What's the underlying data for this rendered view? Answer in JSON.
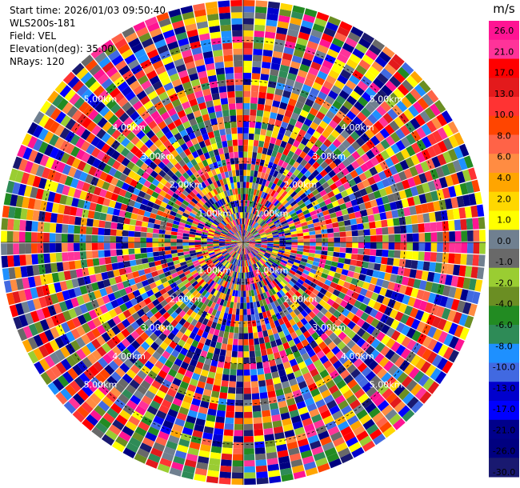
{
  "chart_data": {
    "type": "heatmap",
    "projection": "polar-ppi",
    "info": {
      "start_time": "Start time: 2026/01/03 09:50:40",
      "instrument": "WLS200s-181",
      "field": "Field: VEL",
      "elevation": "Elevation(deg): 35.00",
      "nrays": "NRays: 120"
    },
    "n_rays": 120,
    "max_range_km": 6,
    "range_ring_km": [
      1,
      2,
      3,
      4,
      5
    ],
    "range_ring_labels": [
      "1.00km",
      "2.00km",
      "3.00km",
      "4.00km",
      "5.00km"
    ],
    "colorbar": {
      "unit": "m/s",
      "ticks": [
        "26.0",
        "21.0",
        "17.0",
        "13.0",
        "10.0",
        "8.0",
        "6.0",
        "4.0",
        "2.0",
        "1.0",
        "0.0",
        "-1.0",
        "-2.0",
        "-4.0",
        "-6.0",
        "-8.0",
        "-10.0",
        "-13.0",
        "-17.0",
        "-21.0",
        "-26.0",
        "-30.0"
      ],
      "colors": [
        "#ff1493",
        "#ff3399",
        "#ff0000",
        "#e31a1c",
        "#ff3333",
        "#ff4500",
        "#ff6347",
        "#ff8c42",
        "#ffa500",
        "#ffd700",
        "#ffff00",
        "#708090",
        "#696969",
        "#9acd32",
        "#6b8e23",
        "#228b22",
        "#2e8b57",
        "#1e90ff",
        "#4169e1",
        "#0000cd",
        "#0000ff",
        "#00008b",
        "#000080",
        "#191970"
      ]
    }
  }
}
